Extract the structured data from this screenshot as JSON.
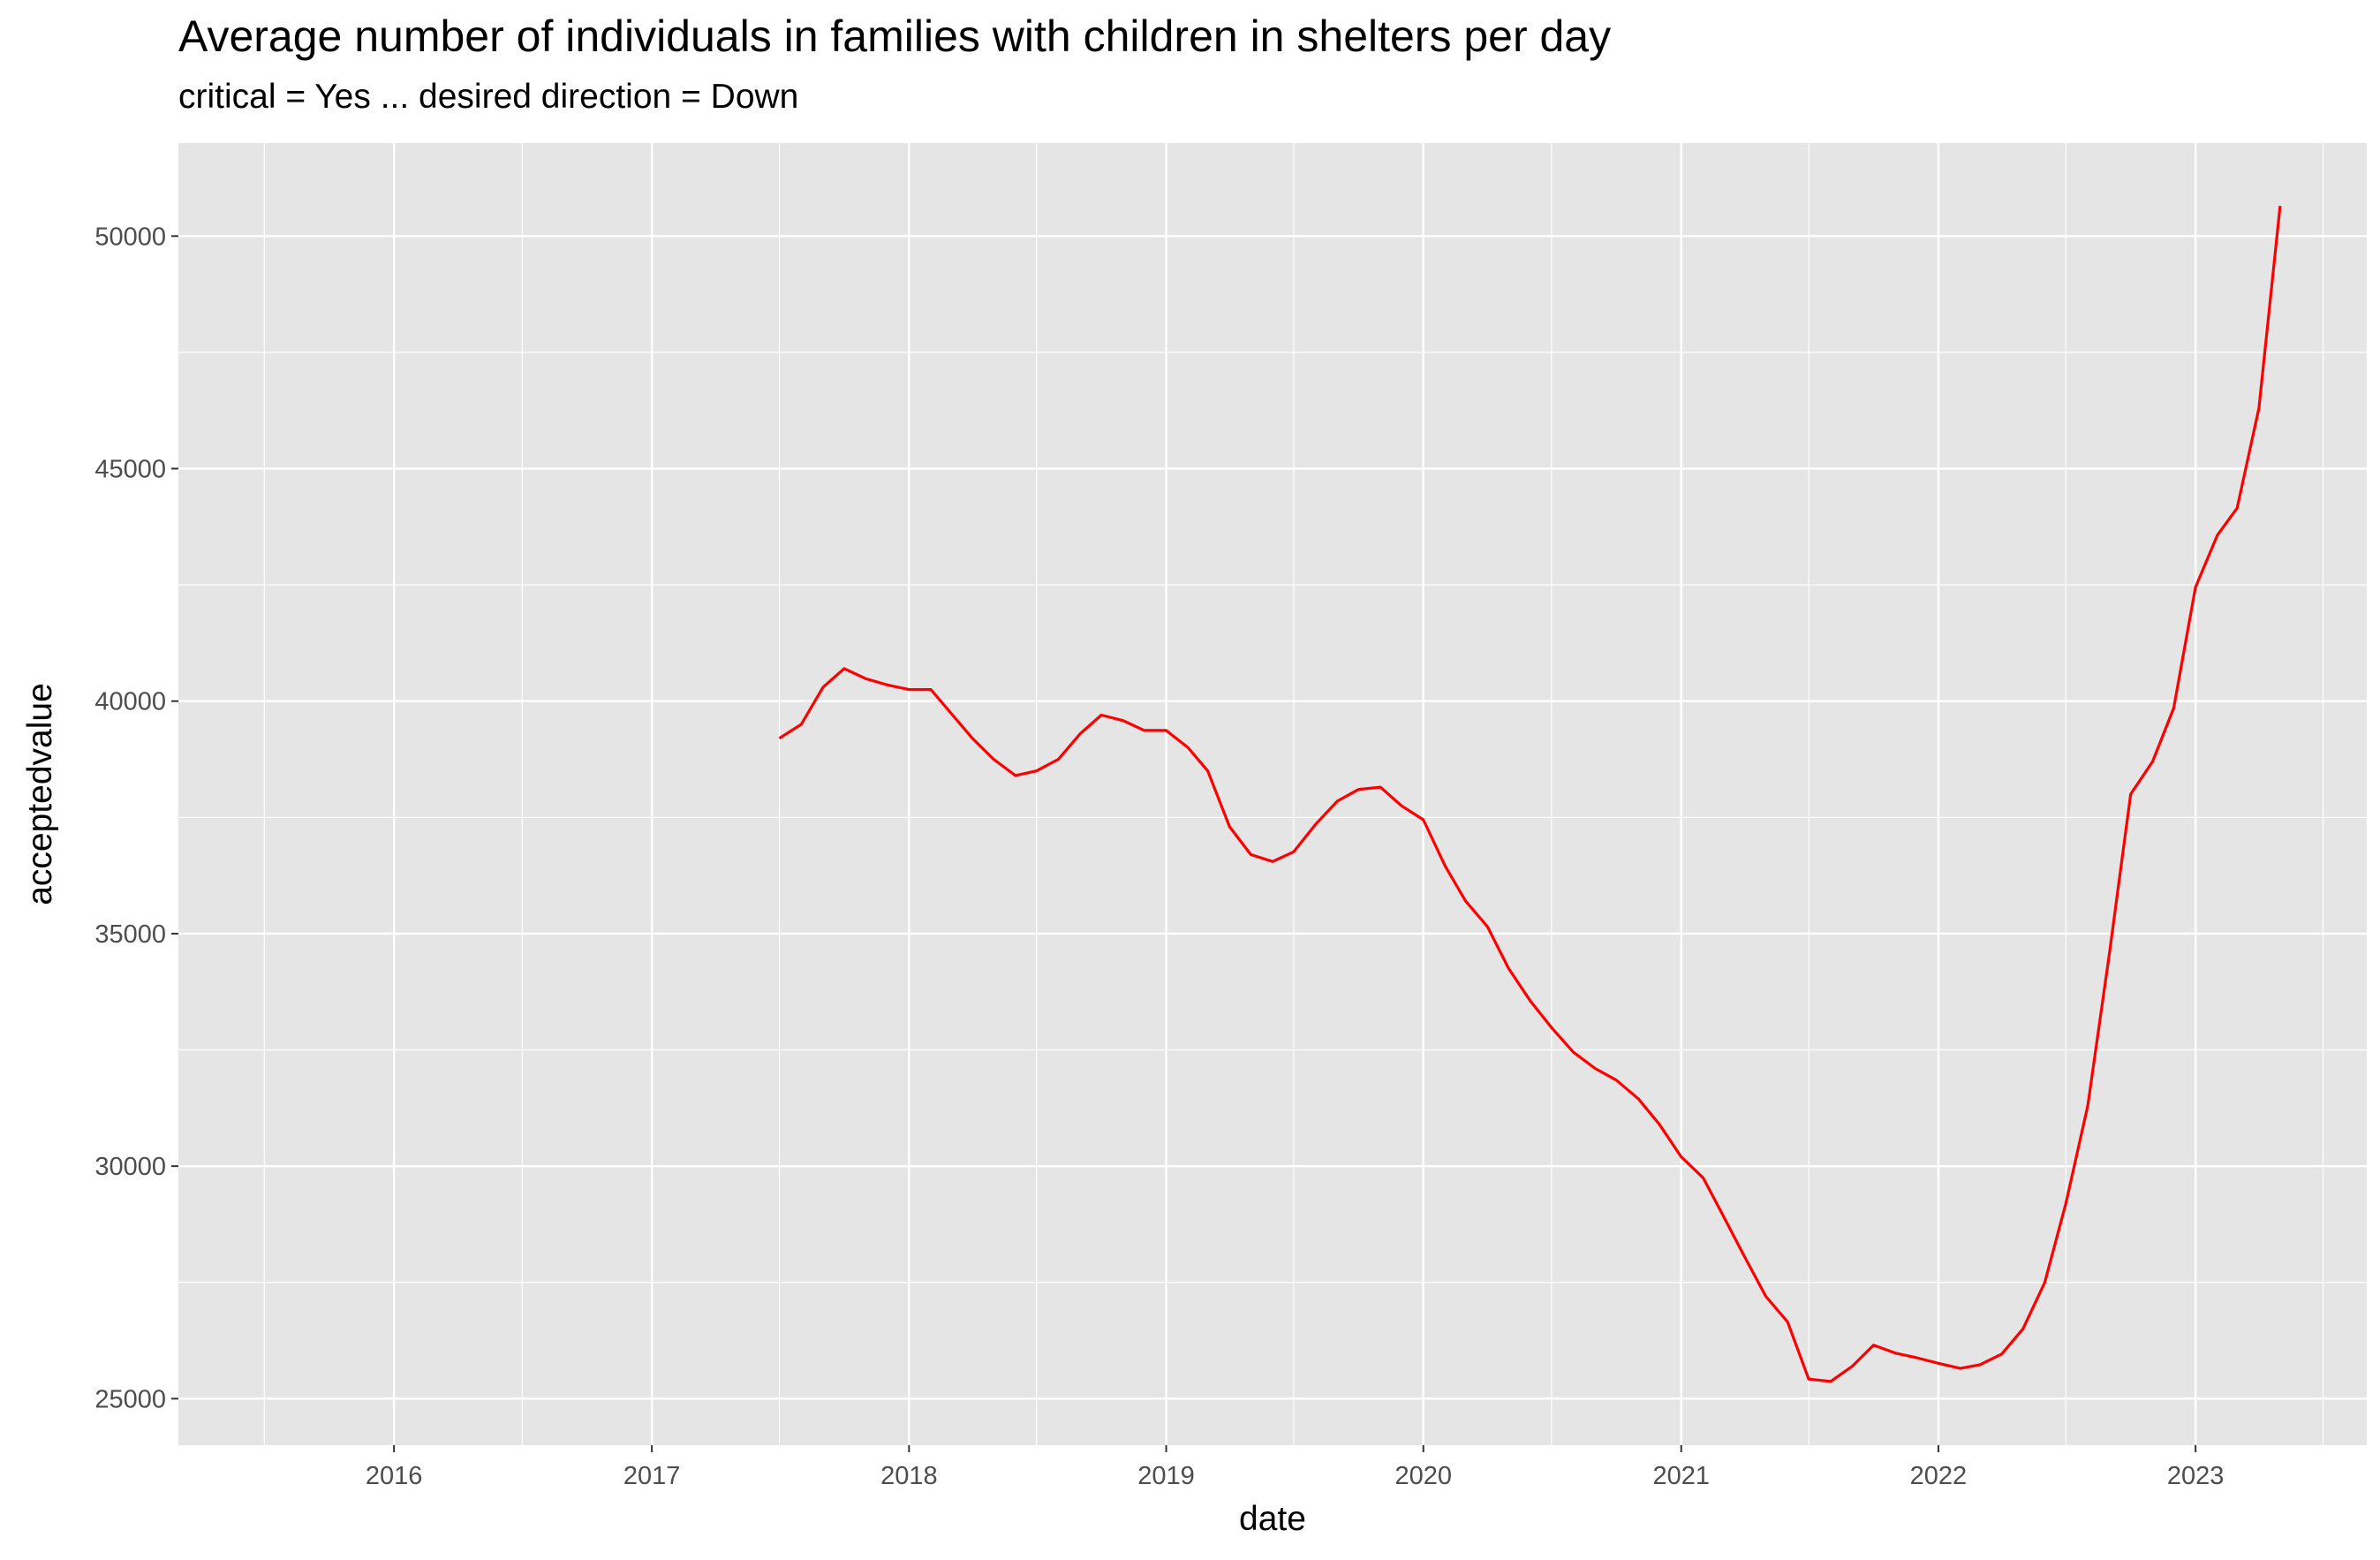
{
  "chart_data": {
    "type": "line",
    "title": "Average number of individuals in families with children in shelters per day",
    "subtitle": "critical = Yes ... desired direction = Down",
    "xlabel": "date",
    "ylabel": "acceptedvalue",
    "x_ticks": [
      "2016",
      "2017",
      "2018",
      "2019",
      "2020",
      "2021",
      "2022",
      "2023"
    ],
    "y_ticks": [
      25000,
      30000,
      35000,
      40000,
      45000,
      50000
    ],
    "xlim": [
      "2015-03-01",
      "2023-09-01"
    ],
    "ylim": [
      24000,
      52000
    ],
    "grid": true,
    "line_color": "#ff0000",
    "panel_color": "#e5e5e5",
    "series": [
      {
        "x": [
          "2017-07-01",
          "2017-08-01",
          "2017-09-01",
          "2017-10-01",
          "2017-11-01",
          "2017-12-01",
          "2018-01-01",
          "2018-02-01",
          "2018-03-01",
          "2018-04-01",
          "2018-05-01",
          "2018-06-01",
          "2018-07-01",
          "2018-08-01",
          "2018-09-01",
          "2018-10-01",
          "2018-11-01",
          "2018-12-01",
          "2019-01-01",
          "2019-02-01",
          "2019-03-01",
          "2019-04-01",
          "2019-05-01",
          "2019-06-01",
          "2019-07-01",
          "2019-08-01",
          "2019-09-01",
          "2019-10-01",
          "2019-11-01",
          "2019-12-01",
          "2020-01-01",
          "2020-02-01",
          "2020-03-01",
          "2020-04-01",
          "2020-05-01",
          "2020-06-01",
          "2020-07-01",
          "2020-08-01",
          "2020-09-01",
          "2020-10-01",
          "2020-11-01",
          "2020-12-01",
          "2021-01-01",
          "2021-02-01",
          "2021-03-01",
          "2021-04-01",
          "2021-05-01",
          "2021-06-01",
          "2021-07-01",
          "2021-08-01",
          "2021-09-01",
          "2021-10-01",
          "2021-11-01",
          "2021-12-01",
          "2022-01-01",
          "2022-02-01",
          "2022-03-01",
          "2022-04-01",
          "2022-05-01",
          "2022-06-01",
          "2022-07-01",
          "2022-08-01",
          "2022-09-01",
          "2022-10-01",
          "2022-11-01",
          "2022-12-01",
          "2023-01-01",
          "2023-02-01",
          "2023-03-01",
          "2023-04-01",
          "2023-05-01"
        ],
        "values": [
          39200,
          39500,
          40300,
          40700,
          40480,
          40350,
          40250,
          40250,
          39750,
          39200,
          38750,
          38400,
          38500,
          38750,
          39300,
          39700,
          39580,
          39370,
          39370,
          39000,
          38500,
          37300,
          36700,
          36550,
          36760,
          37350,
          37850,
          38100,
          38150,
          37750,
          37450,
          36450,
          35700,
          35150,
          34250,
          33550,
          32980,
          32450,
          32100,
          31850,
          31450,
          30900,
          30200,
          29750,
          28950,
          28050,
          27200,
          26650,
          25420,
          25370,
          25700,
          26150,
          25980,
          25880,
          25760,
          25650,
          25730,
          25960,
          26500,
          27500,
          29200,
          31300,
          34600,
          38000,
          38700,
          39850,
          42450,
          43570,
          44150,
          46300,
          50650
        ]
      }
    ]
  }
}
